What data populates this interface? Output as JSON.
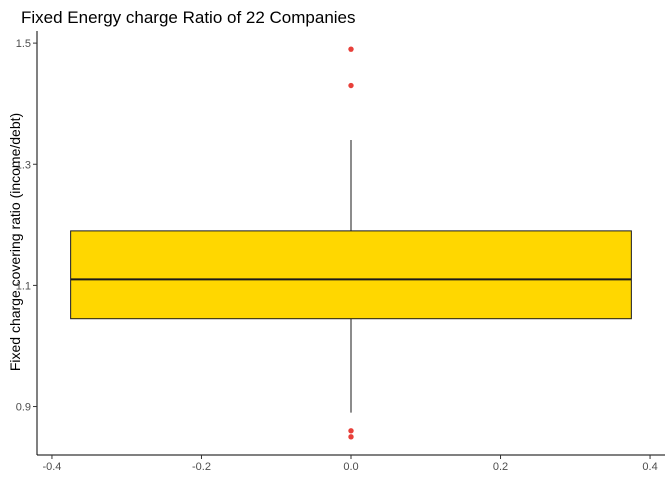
{
  "chart_data": {
    "type": "box",
    "title": "Fixed Energy charge Ratio of 22 Companies",
    "xlabel": "",
    "ylabel": "Fixed charge covering ratio (income/debt)",
    "xlim": [
      -0.42,
      0.42
    ],
    "ylim": [
      0.82,
      1.52
    ],
    "x_ticks": [
      "-0.4",
      "-0.2",
      "0.0",
      "0.2",
      "0.4"
    ],
    "y_ticks": [
      "0.9",
      "1.1",
      "1.3",
      "1.5"
    ],
    "box": {
      "x_center": 0,
      "half_width": 0.375,
      "q1": 1.045,
      "median": 1.11,
      "q3": 1.19,
      "whisker_low": 0.89,
      "whisker_high": 1.34
    },
    "outliers": [
      1.49,
      1.43,
      0.86,
      0.85
    ],
    "fill_color": "#FFD700",
    "outlier_color": "#E8403A",
    "grid": false
  }
}
